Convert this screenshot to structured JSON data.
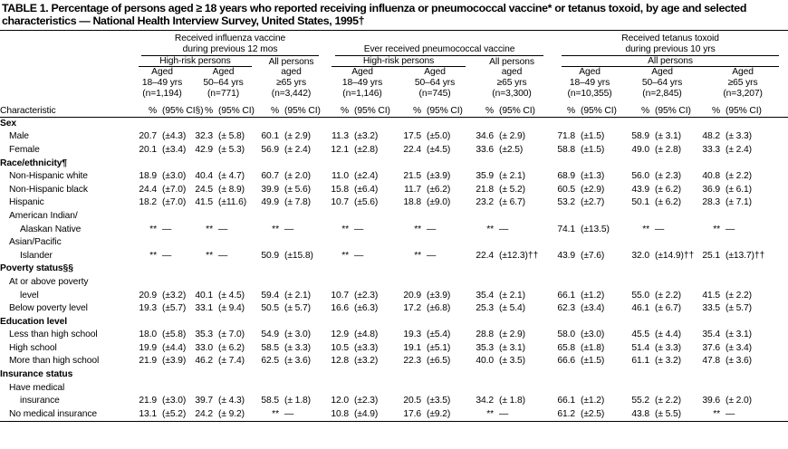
{
  "header": {
    "title": "TABLE 1. Percentage of persons aged ≥ 18 years who reported receiving influenza or pneumococcal vaccine* or tetanus toxoid, by age and selected characteristics — National Health Interview Survey, United States, 1995†"
  },
  "table": {
    "groups": [
      {
        "lines": [
          "Received influenza vaccine",
          "during previous 12 mos"
        ],
        "subgroups": [
          {
            "label": "High-risk persons",
            "columns": [
              [
                "Aged",
                "18–49 yrs",
                "(n=1,194)"
              ],
              [
                "Aged",
                "50–64 yrs",
                "(n=771)"
              ]
            ]
          },
          {
            "columns": [
              [
                "All persons",
                "aged",
                "≥65 yrs",
                "(n=3,442)"
              ]
            ]
          }
        ]
      },
      {
        "lines": [
          "Ever received pneumococcal vaccine"
        ],
        "subgroups": [
          {
            "label": "High-risk persons",
            "columns": [
              [
                "Aged",
                "18–49 yrs",
                "(n=1,146)"
              ],
              [
                "Aged",
                "50–64 yrs",
                "(n=745)"
              ]
            ]
          },
          {
            "columns": [
              [
                "All persons",
                "aged",
                "≥65 yrs",
                "(n=3,300)"
              ]
            ]
          }
        ]
      },
      {
        "lines": [
          "Received tetanus toxoid",
          "during previous 10 yrs"
        ],
        "subgroups": [
          {
            "label": "All persons",
            "columns": [
              [
                "Aged",
                "18–49 yrs",
                "(n=10,355)"
              ],
              [
                "Aged",
                "50–64 yrs",
                "(n=2,845)"
              ],
              [
                "Aged",
                "≥65 yrs",
                "(n=3,207)"
              ]
            ]
          }
        ]
      }
    ],
    "units_row": {
      "label": "Characteristic",
      "cells": [
        [
          "%",
          "(95% CI§)"
        ],
        [
          "%",
          "(95% CI)"
        ],
        [
          "%",
          "(95% CI)"
        ],
        [
          "%",
          "(95% CI)"
        ],
        [
          "%",
          "(95% CI)"
        ],
        [
          "%",
          "(95% CI)"
        ],
        [
          "%",
          "(95% CI)"
        ],
        [
          "%",
          "(95% CI)"
        ],
        [
          "%",
          "(95% CI)"
        ]
      ]
    },
    "rows": [
      {
        "section": "Sex"
      },
      {
        "label": [
          "Male"
        ],
        "cells": [
          [
            "20.7",
            "(±4.3)"
          ],
          [
            "32.3",
            "(± 5.8)"
          ],
          [
            "60.1",
            "(± 2.9)"
          ],
          [
            "11.3",
            "(±3.2)"
          ],
          [
            "17.5",
            "(±5.0)"
          ],
          [
            "34.6",
            "(± 2.9)"
          ],
          [
            "71.8",
            "(±1.5)"
          ],
          [
            "58.9",
            "(± 3.1)"
          ],
          [
            "48.2",
            "(± 3.3)"
          ]
        ]
      },
      {
        "label": [
          "Female"
        ],
        "cells": [
          [
            "20.1",
            "(±3.4)"
          ],
          [
            "42.9",
            "(± 5.3)"
          ],
          [
            "56.9",
            "(± 2.4)"
          ],
          [
            "12.1",
            "(±2.8)"
          ],
          [
            "22.4",
            "(±4.5)"
          ],
          [
            "33.6",
            "(±2.5)"
          ],
          [
            "58.8",
            "(±1.5)"
          ],
          [
            "49.0",
            "(± 2.8)"
          ],
          [
            "33.3",
            "(± 2.4)"
          ]
        ]
      },
      {
        "section": "Race/ethnicity¶"
      },
      {
        "label": [
          "Non-Hispanic white"
        ],
        "cells": [
          [
            "18.9",
            "(±3.0)"
          ],
          [
            "40.4",
            "(± 4.7)"
          ],
          [
            "60.7",
            "(± 2.0)"
          ],
          [
            "11.0",
            "(±2.4)"
          ],
          [
            "21.5",
            "(±3.9)"
          ],
          [
            "35.9",
            "(± 2.1)"
          ],
          [
            "68.9",
            "(±1.3)"
          ],
          [
            "56.0",
            "(± 2.3)"
          ],
          [
            "40.8",
            "(± 2.2)"
          ]
        ]
      },
      {
        "label": [
          "Non-Hispanic black"
        ],
        "cells": [
          [
            "24.4",
            "(±7.0)"
          ],
          [
            "24.5",
            "(± 8.9)"
          ],
          [
            "39.9",
            "(± 5.6)"
          ],
          [
            "15.8",
            "(±6.4)"
          ],
          [
            "11.7",
            "(±6.2)"
          ],
          [
            "21.8",
            "(± 5.2)"
          ],
          [
            "60.5",
            "(±2.9)"
          ],
          [
            "43.9",
            "(± 6.2)"
          ],
          [
            "36.9",
            "(± 6.1)"
          ]
        ]
      },
      {
        "label": [
          "Hispanic"
        ],
        "cells": [
          [
            "18.2",
            "(±7.0)"
          ],
          [
            "41.5",
            "(±11.6)"
          ],
          [
            "49.9",
            "(± 7.8)"
          ],
          [
            "10.7",
            "(±5.6)"
          ],
          [
            "18.8",
            "(±9.0)"
          ],
          [
            "23.2",
            "(± 6.7)"
          ],
          [
            "53.2",
            "(±2.7)"
          ],
          [
            "50.1",
            "(± 6.2)"
          ],
          [
            "28.3",
            "(± 7.1)"
          ]
        ]
      },
      {
        "label": [
          "American Indian/",
          "Alaskan Native"
        ],
        "cells": [
          [
            "**",
            "—"
          ],
          [
            "**",
            "—"
          ],
          [
            "**",
            "—"
          ],
          [
            "**",
            "—"
          ],
          [
            "**",
            "—"
          ],
          [
            "**",
            "—"
          ],
          [
            "74.1",
            "(±13.5)"
          ],
          [
            "**",
            "—"
          ],
          [
            "**",
            "—"
          ]
        ]
      },
      {
        "label": [
          "Asian/Pacific",
          "Islander"
        ],
        "cells": [
          [
            "**",
            "—"
          ],
          [
            "**",
            "—"
          ],
          [
            "50.9",
            "(±15.8)"
          ],
          [
            "**",
            "—"
          ],
          [
            "**",
            "—"
          ],
          [
            "22.4",
            "(±12.3)††"
          ],
          [
            "43.9",
            "(±7.6)"
          ],
          [
            "32.0",
            "(±14.9)††"
          ],
          [
            "25.1",
            "(±13.7)††"
          ]
        ]
      },
      {
        "section": "Poverty status§§"
      },
      {
        "label": [
          "At or above poverty",
          "level"
        ],
        "cells": [
          [
            "20.9",
            "(±3.2)"
          ],
          [
            "40.1",
            "(± 4.5)"
          ],
          [
            "59.4",
            "(± 2.1)"
          ],
          [
            "10.7",
            "(±2.3)"
          ],
          [
            "20.9",
            "(±3.9)"
          ],
          [
            "35.4",
            "(± 2.1)"
          ],
          [
            "66.1",
            "(±1.2)"
          ],
          [
            "55.0",
            "(± 2.2)"
          ],
          [
            "41.5",
            "(± 2.2)"
          ]
        ]
      },
      {
        "label": [
          "Below poverty level"
        ],
        "cells": [
          [
            "19.3",
            "(±5.7)"
          ],
          [
            "33.1",
            "(± 9.4)"
          ],
          [
            "50.5",
            "(± 5.7)"
          ],
          [
            "16.6",
            "(±6.3)"
          ],
          [
            "17.2",
            "(±6.8)"
          ],
          [
            "25.3",
            "(± 5.4)"
          ],
          [
            "62.3",
            "(±3.4)"
          ],
          [
            "46.1",
            "(± 6.7)"
          ],
          [
            "33.5",
            "(± 5.7)"
          ]
        ]
      },
      {
        "section": "Education level"
      },
      {
        "label": [
          "Less than high school"
        ],
        "cells": [
          [
            "18.0",
            "(±5.8)"
          ],
          [
            "35.3",
            "(± 7.0)"
          ],
          [
            "54.9",
            "(± 3.0)"
          ],
          [
            "12.9",
            "(±4.8)"
          ],
          [
            "19.3",
            "(±5.4)"
          ],
          [
            "28.8",
            "(± 2.9)"
          ],
          [
            "58.0",
            "(±3.0)"
          ],
          [
            "45.5",
            "(± 4.4)"
          ],
          [
            "35.4",
            "(± 3.1)"
          ]
        ]
      },
      {
        "label": [
          "High school"
        ],
        "cells": [
          [
            "19.9",
            "(±4.4)"
          ],
          [
            "33.0",
            "(± 6.2)"
          ],
          [
            "58.5",
            "(± 3.3)"
          ],
          [
            "10.5",
            "(±3.3)"
          ],
          [
            "19.1",
            "(±5.1)"
          ],
          [
            "35.3",
            "(± 3.1)"
          ],
          [
            "65.8",
            "(±1.8)"
          ],
          [
            "51.4",
            "(± 3.3)"
          ],
          [
            "37.6",
            "(± 3.4)"
          ]
        ]
      },
      {
        "label": [
          "More than high school"
        ],
        "cells": [
          [
            "21.9",
            "(±3.9)"
          ],
          [
            "46.2",
            "(± 7.4)"
          ],
          [
            "62.5",
            "(± 3.6)"
          ],
          [
            "12.8",
            "(±3.2)"
          ],
          [
            "22.3",
            "(±6.5)"
          ],
          [
            "40.0",
            "(± 3.5)"
          ],
          [
            "66.6",
            "(±1.5)"
          ],
          [
            "61.1",
            "(± 3.2)"
          ],
          [
            "47.8",
            "(± 3.6)"
          ]
        ]
      },
      {
        "section": "Insurance status"
      },
      {
        "label": [
          "Have medical",
          "insurance"
        ],
        "cells": [
          [
            "21.9",
            "(±3.0)"
          ],
          [
            "39.7",
            "(± 4.3)"
          ],
          [
            "58.5",
            "(± 1.8)"
          ],
          [
            "12.0",
            "(±2.3)"
          ],
          [
            "20.5",
            "(±3.5)"
          ],
          [
            "34.2",
            "(± 1.8)"
          ],
          [
            "66.1",
            "(±1.2)"
          ],
          [
            "55.2",
            "(± 2.2)"
          ],
          [
            "39.6",
            "(± 2.0)"
          ]
        ]
      },
      {
        "label": [
          "No medical insurance"
        ],
        "cells": [
          [
            "13.1",
            "(±5.2)"
          ],
          [
            "24.2",
            "(± 9.2)"
          ],
          [
            "**",
            "—"
          ],
          [
            "10.8",
            "(±4.9)"
          ],
          [
            "17.6",
            "(±9.2)"
          ],
          [
            "**",
            "—"
          ],
          [
            "61.2",
            "(±2.5)"
          ],
          [
            "43.8",
            "(± 5.5)"
          ],
          [
            "**",
            "—"
          ]
        ]
      }
    ]
  }
}
